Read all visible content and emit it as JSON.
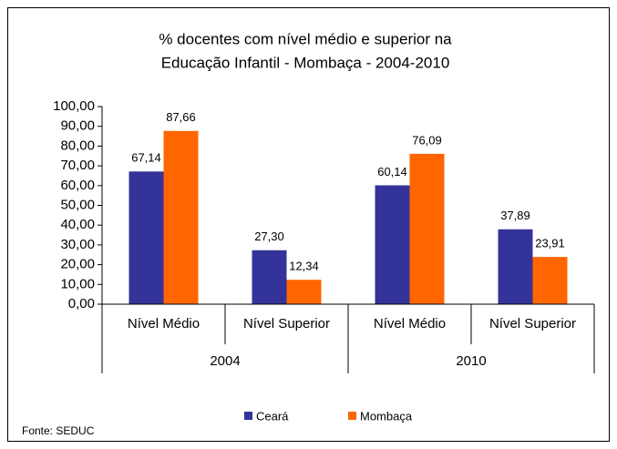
{
  "chart_data": {
    "type": "bar",
    "title": [
      "% docentes com nível médio e superior na",
      "Educação Infantil - Mombaça  - 2004-2010"
    ],
    "categories": [
      "Nível Médio",
      "Nível Superior",
      "Nível Médio",
      "Nível Superior"
    ],
    "groups": [
      "2004",
      "2010"
    ],
    "series": [
      {
        "name": "Ceará",
        "color": "#333399",
        "values": [
          67.14,
          27.3,
          60.14,
          37.89
        ],
        "value_labels": [
          "67,14",
          "27,30",
          "60,14",
          "37,89"
        ]
      },
      {
        "name": "Mombaça",
        "color": "#ff6600",
        "values": [
          87.66,
          12.34,
          76.09,
          23.91
        ],
        "value_labels": [
          "87,66",
          "12,34",
          "76,09",
          "23,91"
        ]
      }
    ],
    "ylim": [
      0,
      100
    ],
    "yticks": [
      {
        "value": 0,
        "label": "0,00"
      },
      {
        "value": 10,
        "label": "10,00"
      },
      {
        "value": 20,
        "label": "20,00"
      },
      {
        "value": 30,
        "label": "30,00"
      },
      {
        "value": 40,
        "label": "40,00"
      },
      {
        "value": 50,
        "label": "50,00"
      },
      {
        "value": 60,
        "label": "60,00"
      },
      {
        "value": 70,
        "label": "70,00"
      },
      {
        "value": 80,
        "label": "80,00"
      },
      {
        "value": 90,
        "label": "90,00"
      },
      {
        "value": 100,
        "label": "100,00"
      }
    ],
    "source": "Fonte: SEDUC"
  }
}
